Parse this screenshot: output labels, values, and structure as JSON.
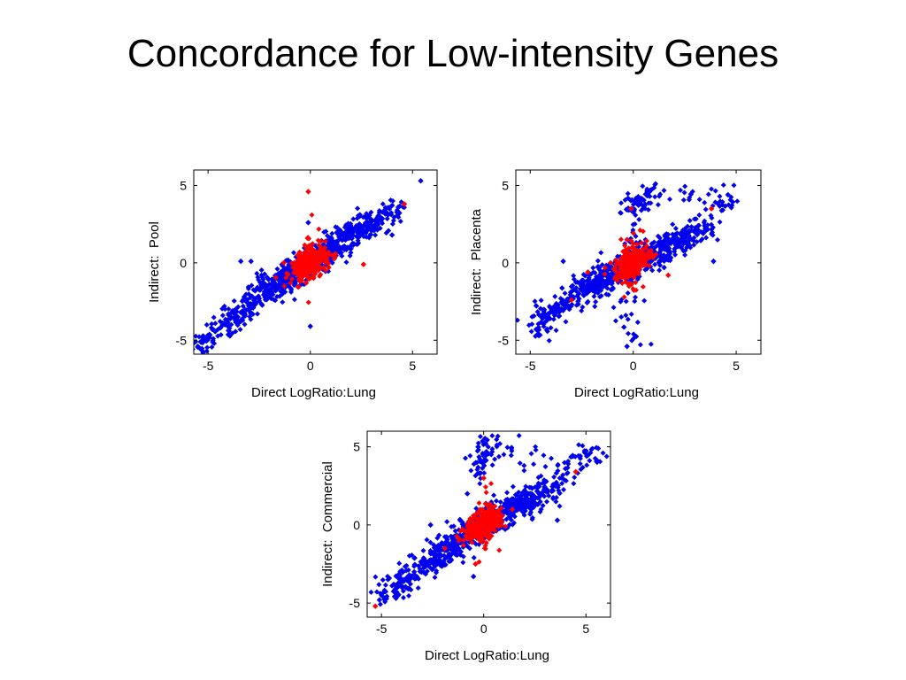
{
  "slide": {
    "title": "Concordance for Low-intensity Genes"
  },
  "colors": {
    "background_points": "#0000ee",
    "highlight_points": "#ff0000",
    "axes": "#000000"
  },
  "chart_data": [
    {
      "type": "scatter",
      "title": "",
      "xlabel": "Direct LogRatio:Lung",
      "ylabel": "Indirect:  Pool",
      "xlim": [
        -5.7,
        6.2
      ],
      "ylim": [
        -5.9,
        6.0
      ],
      "xticks": [
        -5,
        0,
        5
      ],
      "yticks": [
        5,
        0,
        -5
      ],
      "grid": false,
      "legend": "none",
      "series": [
        {
          "color": "blue",
          "points": [
            [
              -5.5,
              -5.4
            ],
            [
              -5.1,
              -4.9
            ],
            [
              -4.4,
              -4.2
            ],
            [
              -3.9,
              -3.6
            ],
            [
              -3.4,
              -3.2
            ],
            [
              -3.0,
              -2.8
            ],
            [
              -2.5,
              -2.3
            ],
            [
              -2.1,
              -1.8
            ],
            [
              -1.7,
              -1.4
            ],
            [
              -1.3,
              -1.1
            ],
            [
              -0.9,
              -0.7
            ],
            [
              -0.5,
              -0.3
            ],
            [
              0.0,
              0.1
            ],
            [
              0.5,
              0.6
            ],
            [
              0.9,
              1.0
            ],
            [
              1.3,
              1.3
            ],
            [
              1.8,
              1.7
            ],
            [
              2.3,
              2.1
            ],
            [
              2.8,
              2.5
            ],
            [
              3.3,
              2.8
            ],
            [
              3.8,
              3.1
            ],
            [
              4.3,
              3.6
            ],
            [
              5.4,
              5.3
            ],
            [
              -1.0,
              0.0
            ],
            [
              -0.5,
              0.4
            ],
            [
              0.6,
              -0.3
            ],
            [
              -3.4,
              0.1
            ],
            [
              -0.1,
              2.6
            ],
            [
              0.0,
              -4.1
            ],
            [
              4.0,
              1.8
            ],
            [
              -2.9,
              0.1
            ]
          ]
        },
        {
          "color": "red",
          "points": [
            [
              -0.1,
              4.6
            ],
            [
              4.6,
              3.8
            ],
            [
              -1.3,
              0.0
            ],
            [
              -0.5,
              0.5
            ],
            [
              0.0,
              0.0
            ],
            [
              0.4,
              -0.4
            ],
            [
              -0.7,
              -0.6
            ],
            [
              0.5,
              0.8
            ],
            [
              -0.2,
              -1.3
            ],
            [
              0.9,
              -0.3
            ],
            [
              2.6,
              -0.1
            ]
          ]
        }
      ]
    },
    {
      "type": "scatter",
      "title": "",
      "xlabel": "Direct LogRatio:Lung",
      "ylabel": "Indirect:  Placenta",
      "xlim": [
        -5.7,
        6.2
      ],
      "ylim": [
        -5.9,
        6.0
      ],
      "xticks": [
        -5,
        0,
        5
      ],
      "yticks": [
        5,
        0,
        -5
      ],
      "grid": false,
      "legend": "none",
      "series": [
        {
          "color": "blue",
          "points": [
            [
              -4.6,
              -4.6
            ],
            [
              -4.4,
              -3.6
            ],
            [
              -3.9,
              -3.2
            ],
            [
              -3.4,
              -2.7
            ],
            [
              -2.9,
              -2.2
            ],
            [
              -2.4,
              -1.8
            ],
            [
              -2.0,
              -1.5
            ],
            [
              -1.5,
              -1.1
            ],
            [
              -1.0,
              -0.7
            ],
            [
              -0.5,
              -0.3
            ],
            [
              0.0,
              0.0
            ],
            [
              0.5,
              0.3
            ],
            [
              1.0,
              0.6
            ],
            [
              1.5,
              0.9
            ],
            [
              2.0,
              1.3
            ],
            [
              2.5,
              1.6
            ],
            [
              3.0,
              2.0
            ],
            [
              3.5,
              2.2
            ],
            [
              4.6,
              4.4
            ],
            [
              0.8,
              4.3
            ],
            [
              -0.1,
              3.4
            ],
            [
              -0.3,
              -5.4
            ],
            [
              -3.4,
              0.1
            ],
            [
              3.9,
              0.1
            ],
            [
              1.5,
              -0.3
            ],
            [
              -1.0,
              -0.4
            ]
          ]
        },
        {
          "color": "red",
          "points": [
            [
              -0.1,
              3.5
            ],
            [
              0.0,
              0.0
            ],
            [
              -0.5,
              -0.3
            ],
            [
              0.4,
              0.3
            ],
            [
              -1.1,
              0.0
            ],
            [
              0.9,
              0.5
            ],
            [
              -0.3,
              1.5
            ],
            [
              -0.2,
              -1.5
            ],
            [
              3.8,
              3.5
            ],
            [
              1.7,
              -0.8
            ],
            [
              -2.2,
              -0.6
            ],
            [
              -3.0,
              -2.4
            ]
          ]
        }
      ]
    },
    {
      "type": "scatter",
      "title": "",
      "xlabel": "Direct LogRatio:Lung",
      "ylabel": "Indirect:  Commercial",
      "xlim": [
        -5.7,
        6.2
      ],
      "ylim": [
        -5.9,
        6.0
      ],
      "xticks": [
        -5,
        0,
        5
      ],
      "yticks": [
        5,
        0,
        -5
      ],
      "grid": false,
      "legend": "none",
      "series": [
        {
          "color": "blue",
          "points": [
            [
              -5.1,
              -4.8
            ],
            [
              -4.4,
              -3.8
            ],
            [
              -3.9,
              -3.5
            ],
            [
              -3.4,
              -3.0
            ],
            [
              -2.9,
              -2.6
            ],
            [
              -2.4,
              -2.1
            ],
            [
              -1.9,
              -1.6
            ],
            [
              -1.4,
              -1.2
            ],
            [
              -0.9,
              -0.7
            ],
            [
              -0.4,
              -0.3
            ],
            [
              0.0,
              0.0
            ],
            [
              0.5,
              0.4
            ],
            [
              1.0,
              0.8
            ],
            [
              1.5,
              1.2
            ],
            [
              2.0,
              1.5
            ],
            [
              2.5,
              1.8
            ],
            [
              3.0,
              2.2
            ],
            [
              3.5,
              2.5
            ],
            [
              5.6,
              4.9
            ],
            [
              4.0,
              3.6
            ],
            [
              0.1,
              5.2
            ],
            [
              -0.2,
              3.3
            ],
            [
              -0.5,
              -3.3
            ],
            [
              -2.6,
              0.0
            ],
            [
              3.6,
              0.3
            ],
            [
              -0.8,
              2.0
            ]
          ]
        },
        {
          "color": "red",
          "points": [
            [
              -5.3,
              -5.2
            ],
            [
              4.5,
              3.4
            ],
            [
              0.0,
              3.0
            ],
            [
              0.0,
              0.0
            ],
            [
              -0.6,
              -0.2
            ],
            [
              0.4,
              0.2
            ],
            [
              -1.2,
              -0.9
            ],
            [
              0.9,
              0.6
            ],
            [
              -0.4,
              -2.5
            ],
            [
              -1.9,
              -1.5
            ],
            [
              1.4,
              1.0
            ],
            [
              -0.5,
              0.6
            ]
          ]
        }
      ]
    }
  ]
}
